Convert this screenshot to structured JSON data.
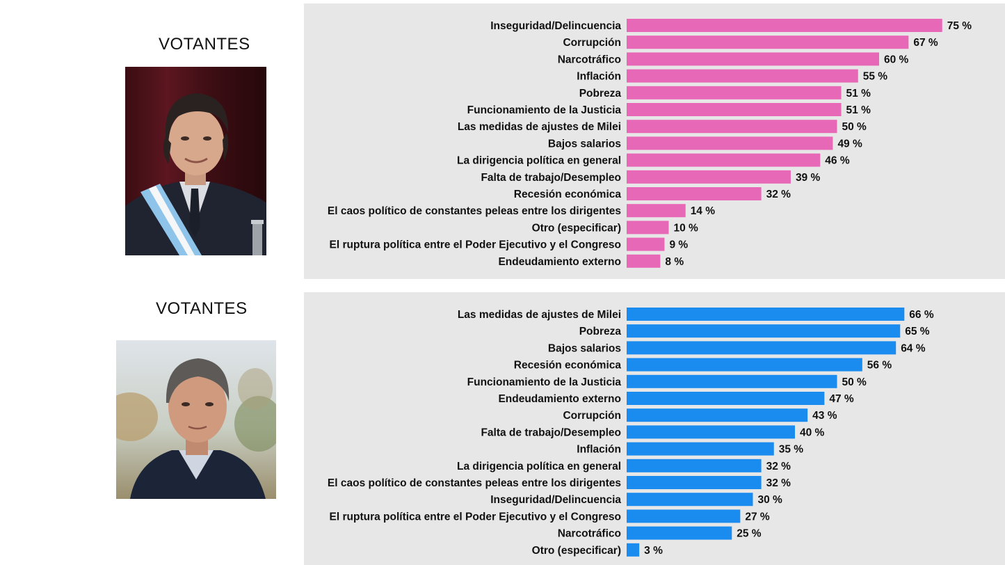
{
  "panels": [
    {
      "title": "VOTANTES",
      "portrait": "man-smiling-with-presidential-sash-photo"
    },
    {
      "title": "VOTANTES",
      "portrait": "man-in-dark-jacket-outdoors-photo"
    }
  ],
  "chart_data": [
    {
      "type": "bar",
      "orientation": "horizontal",
      "color": "#e868b8",
      "value_suffix": " %",
      "categories": [
        "Inseguridad/Delincuencia",
        "Corrupción",
        "Narcotráfico",
        "Inflación",
        "Pobreza",
        "Funcionamiento de la Justicia",
        "Las medidas de ajustes de Milei",
        "Bajos salarios",
        "La dirigencia política en general",
        "Falta de trabajo/Desempleo",
        "Recesión económica",
        "El caos político de constantes peleas entre los dirigentes",
        "Otro (especificar)",
        "El ruptura política entre el Poder Ejecutivo y el Congreso",
        "Endeudamiento externo"
      ],
      "values": [
        75,
        67,
        60,
        55,
        51,
        51,
        50,
        49,
        46,
        39,
        32,
        14,
        10,
        9,
        8
      ]
    },
    {
      "type": "bar",
      "orientation": "horizontal",
      "color": "#1a8cf0",
      "value_suffix": " %",
      "categories": [
        "Las medidas de ajustes de Milei",
        "Pobreza",
        "Bajos salarios",
        "Recesión económica",
        "Funcionamiento de la Justicia",
        "Endeudamiento externo",
        "Corrupción",
        "Falta de trabajo/Desempleo",
        "Inflación",
        "La dirigencia política en general",
        "El caos político de constantes peleas entre los dirigentes",
        "Inseguridad/Delincuencia",
        "El ruptura política entre el Poder Ejecutivo y el Congreso",
        "Narcotráfico",
        "Otro (especificar)"
      ],
      "values": [
        66,
        65,
        64,
        56,
        50,
        47,
        43,
        40,
        35,
        32,
        32,
        30,
        27,
        25,
        3
      ]
    }
  ]
}
